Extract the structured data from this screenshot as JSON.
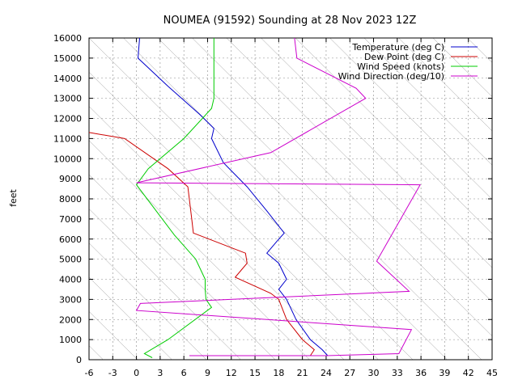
{
  "chart_data": {
    "type": "line",
    "title": "NOUMEA (91592) Sounding at 28 Nov 2023 12Z",
    "xlabel": "",
    "ylabel": "feet",
    "xlim": [
      -6,
      45
    ],
    "ylim": [
      0,
      16000
    ],
    "x_ticks": [
      "-6",
      "-3",
      "0",
      "3",
      "6",
      "9",
      "12",
      "15",
      "18",
      "21",
      "24",
      "27",
      "30",
      "33",
      "36",
      "39",
      "42",
      "45"
    ],
    "y_ticks": [
      "0",
      "1000",
      "2000",
      "3000",
      "4000",
      "5000",
      "6000",
      "7000",
      "8000",
      "9000",
      "10000",
      "11000",
      "12000",
      "13000",
      "14000",
      "15000",
      "16000"
    ],
    "grid": true,
    "legend_position": "top-right",
    "series": [
      {
        "name": "Temperature (deg C)",
        "color": "#0000cc",
        "points": [
          [
            24.2,
            200
          ],
          [
            23.5,
            500
          ],
          [
            22.0,
            1000
          ],
          [
            20.2,
            2000
          ],
          [
            19.0,
            3000
          ],
          [
            18.0,
            3500
          ],
          [
            19.0,
            4000
          ],
          [
            18.0,
            4800
          ],
          [
            16.5,
            5300
          ],
          [
            18.0,
            6000
          ],
          [
            18.7,
            6300
          ],
          [
            16.5,
            7400
          ],
          [
            14.0,
            8600
          ],
          [
            11.0,
            9800
          ],
          [
            9.5,
            11000
          ],
          [
            9.8,
            11500
          ],
          [
            8.0,
            12200
          ],
          [
            4.0,
            13600
          ],
          [
            0.2,
            15000
          ],
          [
            0.3,
            15500
          ],
          [
            0.4,
            16000
          ]
        ]
      },
      {
        "name": "Dew Point (deg C)",
        "color": "#cc0000",
        "points": [
          [
            22.0,
            200
          ],
          [
            22.5,
            500
          ],
          [
            21.0,
            1000
          ],
          [
            19.0,
            2000
          ],
          [
            18.0,
            3000
          ],
          [
            17.0,
            3300
          ],
          [
            12.5,
            4100
          ],
          [
            14.0,
            4800
          ],
          [
            13.8,
            5300
          ],
          [
            7.2,
            6300
          ],
          [
            7.0,
            7000
          ],
          [
            6.5,
            8600
          ],
          [
            4.0,
            9500
          ],
          [
            -1.5,
            11000
          ],
          [
            -6.0,
            11300
          ]
        ]
      },
      {
        "name": "Wind Speed (knots)",
        "color": "#00cc00",
        "points": [
          [
            2.0,
            100
          ],
          [
            1.0,
            300
          ],
          [
            4.0,
            1000
          ],
          [
            9.5,
            2600
          ],
          [
            8.8,
            3000
          ],
          [
            8.7,
            3500
          ],
          [
            8.7,
            4000
          ],
          [
            7.5,
            5000
          ],
          [
            4.8,
            6200
          ],
          [
            0.0,
            8700
          ],
          [
            1.5,
            9500
          ],
          [
            6.0,
            11000
          ],
          [
            9.5,
            12500
          ],
          [
            9.8,
            13000
          ],
          [
            9.8,
            14000
          ],
          [
            9.8,
            16000
          ]
        ]
      },
      {
        "name": "Wind Direction (deg/10)",
        "color": "#cc00cc",
        "points": [
          [
            6.7,
            200
          ],
          [
            24.0,
            200
          ],
          [
            33.2,
            300
          ],
          [
            34.8,
            1500
          ],
          [
            0.0,
            2450
          ],
          [
            0.5,
            2800
          ],
          [
            34.5,
            3400
          ],
          [
            30.4,
            4900
          ],
          [
            35.9,
            8700
          ],
          [
            0.0,
            8800
          ],
          [
            17.0,
            10300
          ],
          [
            29.0,
            13000
          ],
          [
            27.8,
            13500
          ],
          [
            20.3,
            15000
          ],
          [
            20.0,
            16000
          ]
        ]
      }
    ]
  }
}
